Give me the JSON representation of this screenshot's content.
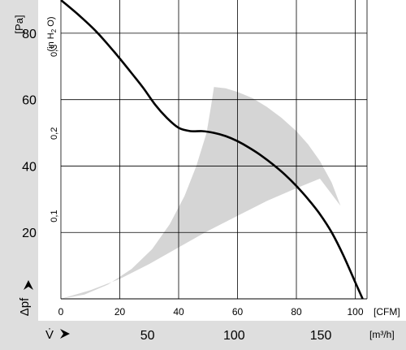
{
  "chart_data": {
    "type": "line",
    "left_axis": {
      "unit": "[Pa]",
      "tick_labels": [
        "20",
        "40",
        "60",
        "80"
      ],
      "ticks": [
        20,
        40,
        60,
        80
      ],
      "symbol": "Δpf",
      "range": [
        0,
        90
      ]
    },
    "secondary_axis": {
      "unit": "(in H2O)",
      "unit_parts": {
        "a": "(in H",
        "sub": "2",
        "b": " O)"
      },
      "tick_labels": [
        "0,1",
        "0,2",
        "0,3"
      ],
      "ticks": [
        0.1,
        0.2,
        0.3
      ]
    },
    "bottom_axis": {
      "unit": "[CFM]",
      "tick_labels": [
        "0",
        "20",
        "40",
        "60",
        "80",
        "100"
      ],
      "ticks": [
        0,
        20,
        40,
        60,
        80,
        100
      ],
      "range": [
        0,
        104
      ]
    },
    "flow_axis": {
      "symbol": "V̇",
      "unit": "[m³/h]",
      "tick_labels": [
        "50",
        "100",
        "150"
      ],
      "ticks": [
        50,
        100,
        150
      ]
    },
    "grid": true,
    "series": [
      {
        "points": [
          [
            0,
            90
          ],
          [
            6,
            85.5
          ],
          [
            12,
            80.5
          ],
          [
            18,
            74.5
          ],
          [
            24,
            68
          ],
          [
            28,
            63.5
          ],
          [
            32,
            58.5
          ],
          [
            36,
            54.5
          ],
          [
            40,
            51.5
          ],
          [
            44,
            50.5
          ],
          [
            48,
            50.5
          ],
          [
            52,
            50
          ],
          [
            56,
            49
          ],
          [
            60,
            47.5
          ],
          [
            64,
            45.5
          ],
          [
            68,
            43.2
          ],
          [
            72,
            40.5
          ],
          [
            76,
            37.5
          ],
          [
            80,
            34
          ],
          [
            84,
            30
          ],
          [
            88,
            25.5
          ],
          [
            92,
            20
          ],
          [
            96,
            13
          ],
          [
            100,
            5
          ],
          [
            102.5,
            0
          ]
        ]
      }
    ],
    "operating_range": {
      "color": "#d5d5d5",
      "polygon": [
        [
          0,
          0
        ],
        [
          10,
          2.6
        ],
        [
          20,
          6
        ],
        [
          30,
          10.5
        ],
        [
          40,
          15.5
        ],
        [
          50,
          20.5
        ],
        [
          60,
          25
        ],
        [
          70,
          29.5
        ],
        [
          80,
          33.3
        ],
        [
          88,
          36.2
        ],
        [
          95,
          28
        ],
        [
          92,
          35
        ],
        [
          88,
          41.5
        ],
        [
          84,
          46.5
        ],
        [
          80,
          50.5
        ],
        [
          75,
          54.5
        ],
        [
          70,
          57.8
        ],
        [
          65,
          60.5
        ],
        [
          60,
          62.3
        ],
        [
          56,
          63.4
        ],
        [
          52,
          63.8
        ],
        [
          51,
          58
        ],
        [
          49.5,
          50
        ],
        [
          46,
          40
        ],
        [
          42,
          31
        ],
        [
          37,
          22.5
        ],
        [
          31,
          15
        ],
        [
          24,
          9
        ],
        [
          16,
          4.3
        ],
        [
          8,
          1.3
        ],
        [
          0,
          0
        ]
      ]
    },
    "colors": {
      "curve": "#000000",
      "grid": "#000000",
      "band": "#d5d5d5"
    }
  }
}
